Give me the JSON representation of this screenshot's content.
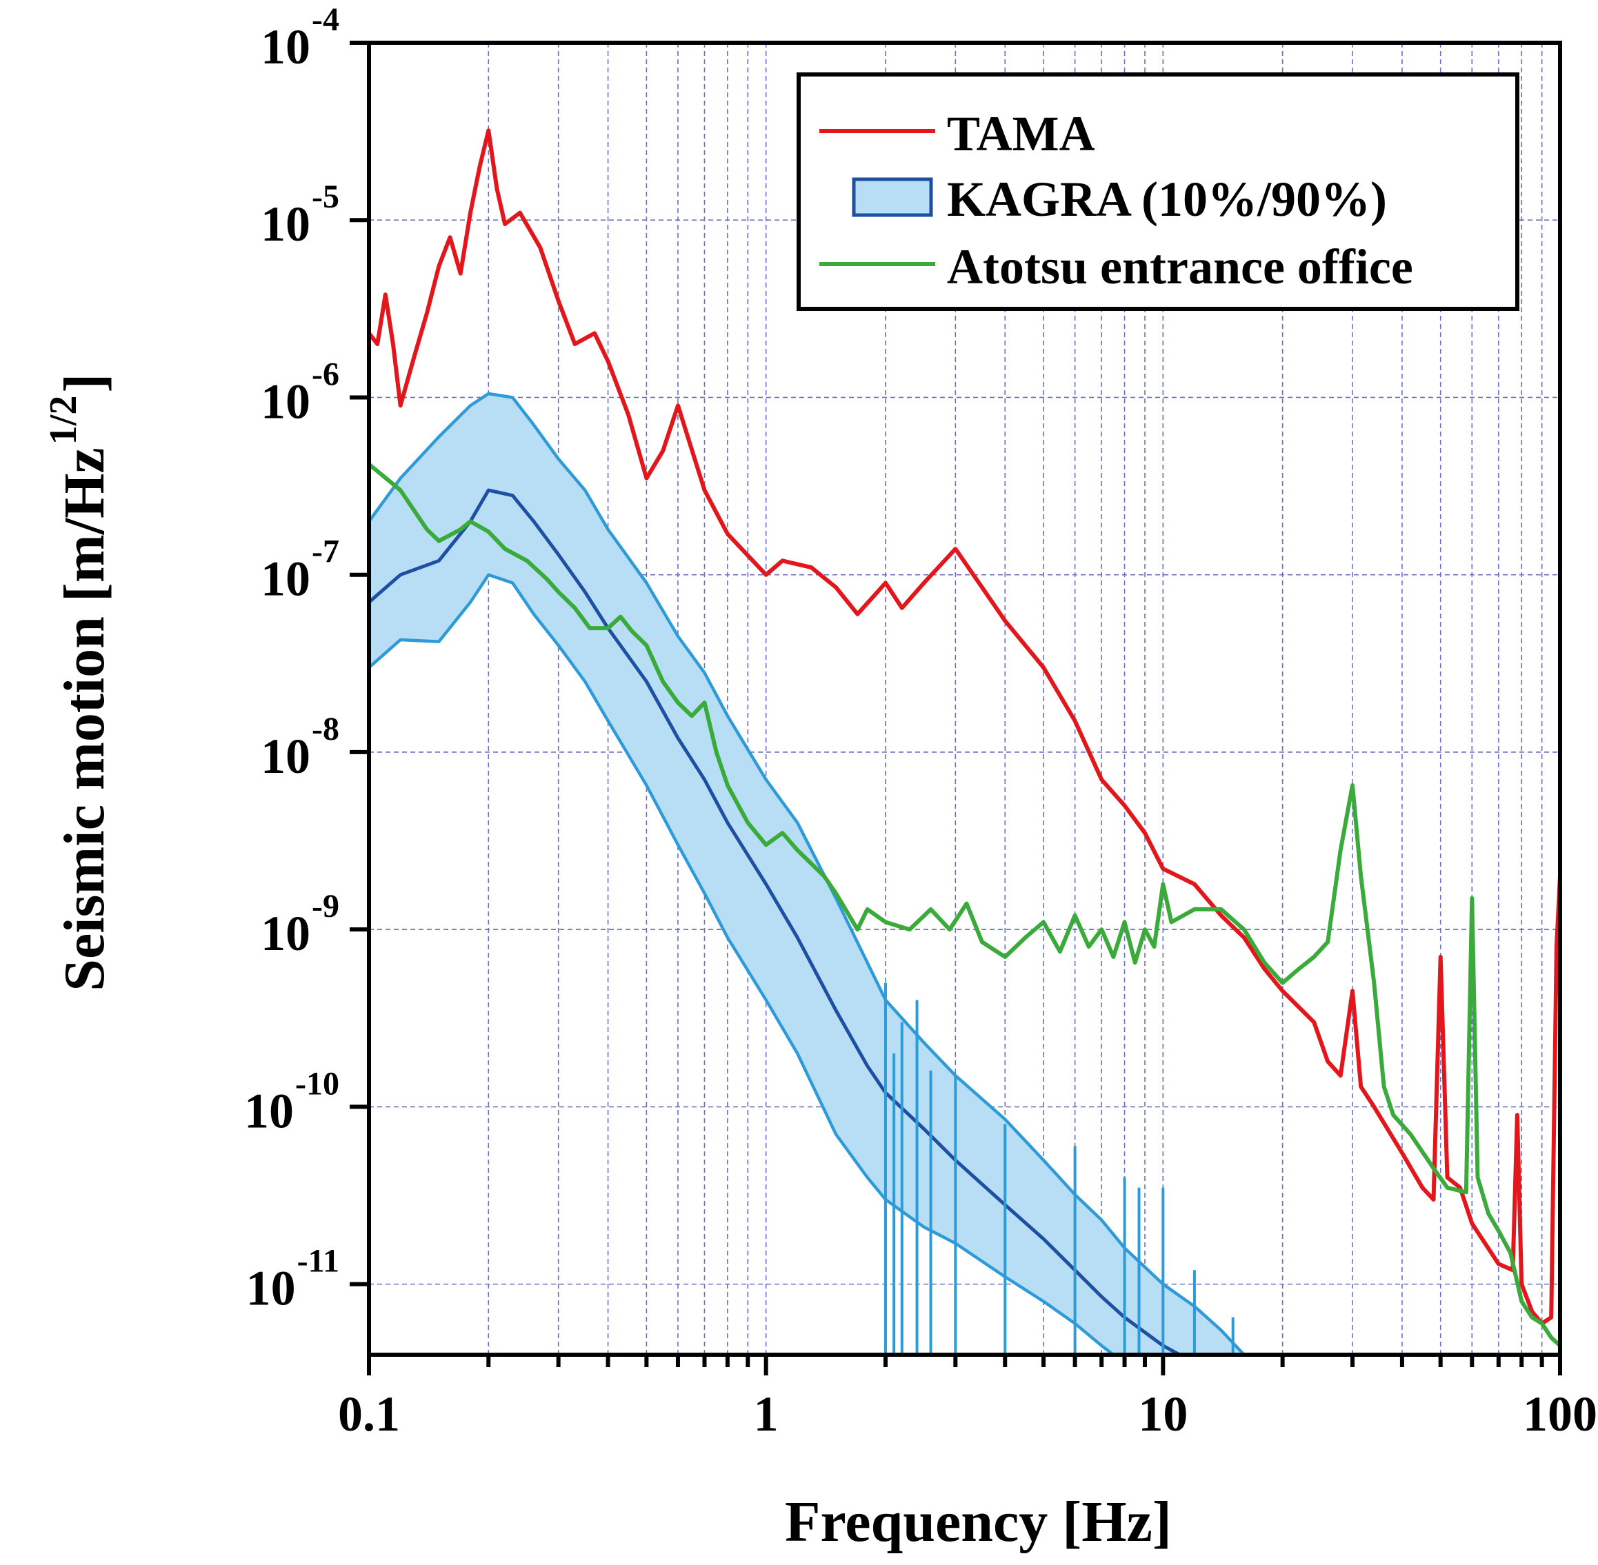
{
  "chart_data": {
    "type": "line",
    "title": "",
    "xlabel": "Frequency [Hz]",
    "ylabel": "Seismic motion [m/Hz^1/2]",
    "ylabel_main": "Seismic motion [m/Hz",
    "ylabel_sup": "1/2",
    "ylabel_end": "]",
    "xscale": "log",
    "yscale": "log",
    "xlim": [
      0.1,
      100
    ],
    "ylim": [
      4e-12,
      0.0001
    ],
    "grid": true,
    "legend_position": "top-right",
    "x_ticks": [
      {
        "value": 0.1,
        "label": "0.1"
      },
      {
        "value": 1,
        "label": "1"
      },
      {
        "value": 10,
        "label": "10"
      },
      {
        "value": 100,
        "label": "100"
      }
    ],
    "y_ticks": [
      {
        "value": 0.0001,
        "base": "10",
        "exp": "-4"
      },
      {
        "value": 1e-05,
        "base": "10",
        "exp": "-5"
      },
      {
        "value": 1e-06,
        "base": "10",
        "exp": "-6"
      },
      {
        "value": 1e-07,
        "base": "10",
        "exp": "-7"
      },
      {
        "value": 1e-08,
        "base": "10",
        "exp": "-8"
      },
      {
        "value": 1e-09,
        "base": "10",
        "exp": "-9"
      },
      {
        "value": 1e-10,
        "base": "10",
        "exp": "-10"
      },
      {
        "value": 1e-11,
        "base": "10",
        "exp": "-11"
      }
    ],
    "series": [
      {
        "name": "TAMA",
        "style": "line",
        "color": "#e3161c",
        "points": [
          [
            0.1,
            2.3e-06
          ],
          [
            0.105,
            2e-06
          ],
          [
            0.11,
            3.8e-06
          ],
          [
            0.115,
            2e-06
          ],
          [
            0.12,
            9e-07
          ],
          [
            0.13,
            1.7e-06
          ],
          [
            0.14,
            3e-06
          ],
          [
            0.15,
            5.5e-06
          ],
          [
            0.16,
            8e-06
          ],
          [
            0.17,
            5e-06
          ],
          [
            0.18,
            1.1e-05
          ],
          [
            0.19,
            2e-05
          ],
          [
            0.2,
            3.2e-05
          ],
          [
            0.21,
            1.5e-05
          ],
          [
            0.22,
            9.5e-06
          ],
          [
            0.24,
            1.1e-05
          ],
          [
            0.27,
            7e-06
          ],
          [
            0.3,
            3.5e-06
          ],
          [
            0.33,
            2e-06
          ],
          [
            0.37,
            2.3e-06
          ],
          [
            0.4,
            1.6e-06
          ],
          [
            0.45,
            8e-07
          ],
          [
            0.5,
            3.5e-07
          ],
          [
            0.55,
            5e-07
          ],
          [
            0.6,
            9e-07
          ],
          [
            0.7,
            3e-07
          ],
          [
            0.8,
            1.7e-07
          ],
          [
            1.0,
            1e-07
          ],
          [
            1.1,
            1.2e-07
          ],
          [
            1.3,
            1.1e-07
          ],
          [
            1.5,
            8.5e-08
          ],
          [
            1.7,
            6e-08
          ],
          [
            2.0,
            9e-08
          ],
          [
            2.2,
            6.5e-08
          ],
          [
            2.5,
            9e-08
          ],
          [
            3.0,
            1.4e-07
          ],
          [
            3.5,
            8.5e-08
          ],
          [
            4.0,
            5.5e-08
          ],
          [
            5.0,
            3e-08
          ],
          [
            6.0,
            1.5e-08
          ],
          [
            7.0,
            7e-09
          ],
          [
            8.0,
            5e-09
          ],
          [
            9.0,
            3.5e-09
          ],
          [
            10.0,
            2.2e-09
          ],
          [
            12.0,
            1.8e-09
          ],
          [
            14.0,
            1.2e-09
          ],
          [
            16.0,
            9e-10
          ],
          [
            18.0,
            6e-10
          ],
          [
            20.0,
            4.5e-10
          ],
          [
            24.0,
            3e-10
          ],
          [
            26.0,
            1.8e-10
          ],
          [
            28.0,
            1.5e-10
          ],
          [
            30.0,
            4.5e-10
          ],
          [
            31.5,
            1.3e-10
          ],
          [
            34.0,
            1e-10
          ],
          [
            40.0,
            5.5e-11
          ],
          [
            45.0,
            3.5e-11
          ],
          [
            48.0,
            3e-11
          ],
          [
            50.0,
            7e-10
          ],
          [
            52.0,
            4e-11
          ],
          [
            56.0,
            3.5e-11
          ],
          [
            60.0,
            2.2e-11
          ],
          [
            70.0,
            1.3e-11
          ],
          [
            76.0,
            1.2e-11
          ],
          [
            78.0,
            9e-11
          ],
          [
            80.0,
            1e-11
          ],
          [
            85.0,
            7e-12
          ],
          [
            90.0,
            6e-12
          ],
          [
            95.0,
            6.5e-12
          ],
          [
            98.0,
            8e-10
          ],
          [
            100.0,
            2e-09
          ]
        ]
      },
      {
        "name": "KAGRA (10%/90%)",
        "style": "band",
        "fill_color": "#b7def4",
        "edge_color": "#2f9ad8",
        "median_color": "#1e4fa3",
        "legend_edge_color": "#1e4fa3",
        "upper": [
          [
            0.1,
            2e-07
          ],
          [
            0.12,
            3.5e-07
          ],
          [
            0.15,
            6e-07
          ],
          [
            0.18,
            9e-07
          ],
          [
            0.2,
            1.05e-06
          ],
          [
            0.23,
            1e-06
          ],
          [
            0.26,
            7e-07
          ],
          [
            0.3,
            4.5e-07
          ],
          [
            0.35,
            3e-07
          ],
          [
            0.4,
            1.8e-07
          ],
          [
            0.5,
            9e-08
          ],
          [
            0.6,
            4.5e-08
          ],
          [
            0.7,
            2.8e-08
          ],
          [
            0.8,
            1.6e-08
          ],
          [
            1.0,
            7e-09
          ],
          [
            1.2,
            4e-09
          ],
          [
            1.5,
            1.5e-09
          ],
          [
            1.8,
            6.5e-10
          ],
          [
            2.0,
            4e-10
          ],
          [
            2.5,
            2.3e-10
          ],
          [
            3.0,
            1.5e-10
          ],
          [
            4.0,
            8.5e-11
          ],
          [
            5.0,
            5e-11
          ],
          [
            6.0,
            3.2e-11
          ],
          [
            7.0,
            2.3e-11
          ],
          [
            8.0,
            1.6e-11
          ],
          [
            10.0,
            1e-11
          ],
          [
            12.0,
            7.5e-12
          ],
          [
            14.0,
            5.5e-12
          ],
          [
            16.0,
            4e-12
          ]
        ],
        "lower": [
          [
            0.1,
            3e-08
          ],
          [
            0.12,
            4.3e-08
          ],
          [
            0.15,
            4.2e-08
          ],
          [
            0.18,
            7e-08
          ],
          [
            0.2,
            1e-07
          ],
          [
            0.23,
            9e-08
          ],
          [
            0.26,
            6e-08
          ],
          [
            0.3,
            4e-08
          ],
          [
            0.35,
            2.5e-08
          ],
          [
            0.4,
            1.5e-08
          ],
          [
            0.5,
            6.5e-09
          ],
          [
            0.6,
            3e-09
          ],
          [
            0.7,
            1.6e-09
          ],
          [
            0.8,
            9e-10
          ],
          [
            1.0,
            4e-10
          ],
          [
            1.2,
            2e-10
          ],
          [
            1.5,
            7e-11
          ],
          [
            1.8,
            4e-11
          ],
          [
            2.0,
            3e-11
          ],
          [
            2.5,
            2.1e-11
          ],
          [
            3.0,
            1.7e-11
          ],
          [
            4.0,
            1.1e-11
          ],
          [
            5.0,
            8e-12
          ],
          [
            6.0,
            6e-12
          ],
          [
            7.0,
            4.5e-12
          ],
          [
            7.5,
            4e-12
          ]
        ],
        "median": [
          [
            0.1,
            7e-08
          ],
          [
            0.12,
            1e-07
          ],
          [
            0.15,
            1.2e-07
          ],
          [
            0.18,
            2e-07
          ],
          [
            0.2,
            3e-07
          ],
          [
            0.23,
            2.8e-07
          ],
          [
            0.26,
            2e-07
          ],
          [
            0.3,
            1.3e-07
          ],
          [
            0.35,
            8e-08
          ],
          [
            0.4,
            5e-08
          ],
          [
            0.5,
            2.5e-08
          ],
          [
            0.6,
            1.2e-08
          ],
          [
            0.7,
            7e-09
          ],
          [
            0.8,
            4e-09
          ],
          [
            1.0,
            1.8e-09
          ],
          [
            1.2,
            9e-10
          ],
          [
            1.5,
            3.5e-10
          ],
          [
            1.8,
            1.7e-10
          ],
          [
            2.0,
            1.2e-10
          ],
          [
            2.5,
            7.5e-11
          ],
          [
            3.0,
            5e-11
          ],
          [
            4.0,
            2.8e-11
          ],
          [
            5.0,
            1.8e-11
          ],
          [
            6.0,
            1.2e-11
          ],
          [
            7.0,
            8.5e-12
          ],
          [
            8.0,
            6.5e-12
          ],
          [
            10.0,
            4.5e-12
          ],
          [
            11.0,
            4e-12
          ]
        ],
        "spikes": [
          [
            2.0,
            5e-10
          ],
          [
            2.1,
            2e-10
          ],
          [
            2.2,
            3e-10
          ],
          [
            2.4,
            4e-10
          ],
          [
            2.6,
            1.6e-10
          ],
          [
            3.0,
            1.5e-10
          ],
          [
            4.0,
            8e-11
          ],
          [
            6.0,
            6e-11
          ],
          [
            8.0,
            4e-11
          ],
          [
            8.7,
            3.5e-11
          ],
          [
            10.0,
            3.5e-11
          ],
          [
            12.0,
            1.2e-11
          ],
          [
            15.0,
            6.5e-12
          ]
        ]
      },
      {
        "name": "Atotsu entrance office",
        "style": "line",
        "color": "#3aab3a",
        "points": [
          [
            0.1,
            4.2e-07
          ],
          [
            0.12,
            3e-07
          ],
          [
            0.14,
            1.8e-07
          ],
          [
            0.15,
            1.55e-07
          ],
          [
            0.17,
            1.8e-07
          ],
          [
            0.18,
            2e-07
          ],
          [
            0.2,
            1.75e-07
          ],
          [
            0.22,
            1.4e-07
          ],
          [
            0.25,
            1.2e-07
          ],
          [
            0.28,
            9.5e-08
          ],
          [
            0.3,
            8e-08
          ],
          [
            0.33,
            6.5e-08
          ],
          [
            0.36,
            5e-08
          ],
          [
            0.4,
            5e-08
          ],
          [
            0.43,
            5.8e-08
          ],
          [
            0.46,
            4.8e-08
          ],
          [
            0.5,
            4e-08
          ],
          [
            0.55,
            2.5e-08
          ],
          [
            0.6,
            1.9e-08
          ],
          [
            0.65,
            1.6e-08
          ],
          [
            0.7,
            1.9e-08
          ],
          [
            0.75,
            1e-08
          ],
          [
            0.8,
            6.5e-09
          ],
          [
            0.9,
            4e-09
          ],
          [
            1.0,
            3e-09
          ],
          [
            1.1,
            3.5e-09
          ],
          [
            1.2,
            2.8e-09
          ],
          [
            1.4,
            2e-09
          ],
          [
            1.5,
            1.6e-09
          ],
          [
            1.7,
            1e-09
          ],
          [
            1.8,
            1.3e-09
          ],
          [
            2.0,
            1.1e-09
          ],
          [
            2.3,
            1e-09
          ],
          [
            2.6,
            1.3e-09
          ],
          [
            2.9,
            1e-09
          ],
          [
            3.2,
            1.4e-09
          ],
          [
            3.5,
            8.5e-10
          ],
          [
            4.0,
            7e-10
          ],
          [
            4.5,
            9e-10
          ],
          [
            5.0,
            1.1e-09
          ],
          [
            5.5,
            7.5e-10
          ],
          [
            6.0,
            1.2e-09
          ],
          [
            6.5,
            8e-10
          ],
          [
            7.0,
            1e-09
          ],
          [
            7.5,
            7e-10
          ],
          [
            8.0,
            1.1e-09
          ],
          [
            8.5,
            6.5e-10
          ],
          [
            9.0,
            1e-09
          ],
          [
            9.5,
            8e-10
          ],
          [
            10.0,
            1.8e-09
          ],
          [
            10.5,
            1.1e-09
          ],
          [
            12.0,
            1.3e-09
          ],
          [
            14.0,
            1.3e-09
          ],
          [
            16.0,
            1e-09
          ],
          [
            18.0,
            6.5e-10
          ],
          [
            20.0,
            5e-10
          ],
          [
            22.0,
            6e-10
          ],
          [
            24.0,
            7e-10
          ],
          [
            26.0,
            8.5e-10
          ],
          [
            28.0,
            2.8e-09
          ],
          [
            30.0,
            6.5e-09
          ],
          [
            31.5,
            2e-09
          ],
          [
            34.0,
            5e-10
          ],
          [
            36.0,
            1.3e-10
          ],
          [
            38.0,
            9e-11
          ],
          [
            42.0,
            7e-11
          ],
          [
            48.0,
            4.5e-11
          ],
          [
            52.0,
            3.5e-11
          ],
          [
            58.0,
            3.3e-11
          ],
          [
            60.0,
            1.5e-09
          ],
          [
            62.0,
            4e-11
          ],
          [
            66.0,
            2.5e-11
          ],
          [
            70.0,
            2e-11
          ],
          [
            75.0,
            1.5e-11
          ],
          [
            80.0,
            8e-12
          ],
          [
            85.0,
            6.5e-12
          ],
          [
            90.0,
            6e-12
          ],
          [
            95.0,
            5e-12
          ],
          [
            100.0,
            4.5e-12
          ]
        ]
      }
    ]
  }
}
